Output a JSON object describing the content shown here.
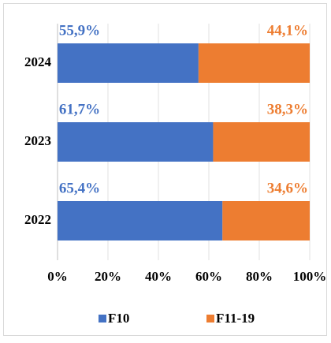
{
  "chart_data": {
    "type": "stacked-bar-horizontal",
    "categories": [
      "2024",
      "2023",
      "2022"
    ],
    "series": [
      {
        "name": "F10",
        "color": "#4472c4",
        "values": [
          55.9,
          61.7,
          65.4
        ],
        "value_labels": [
          "55,9%",
          "61,7%",
          "65,4%"
        ]
      },
      {
        "name": "F11-19",
        "color": "#ed7d31",
        "values": [
          44.1,
          38.3,
          34.6
        ],
        "value_labels": [
          "44,1%",
          "38,3%",
          "34,6%"
        ]
      }
    ],
    "xlim": [
      0,
      100
    ],
    "xticks": [
      {
        "value": 0,
        "label": "0%"
      },
      {
        "value": 20,
        "label": "20%"
      },
      {
        "value": 40,
        "label": "40%"
      },
      {
        "value": 60,
        "label": "60%"
      },
      {
        "value": 80,
        "label": "80%"
      },
      {
        "value": 100,
        "label": "100%"
      }
    ],
    "legend": "bottom"
  }
}
